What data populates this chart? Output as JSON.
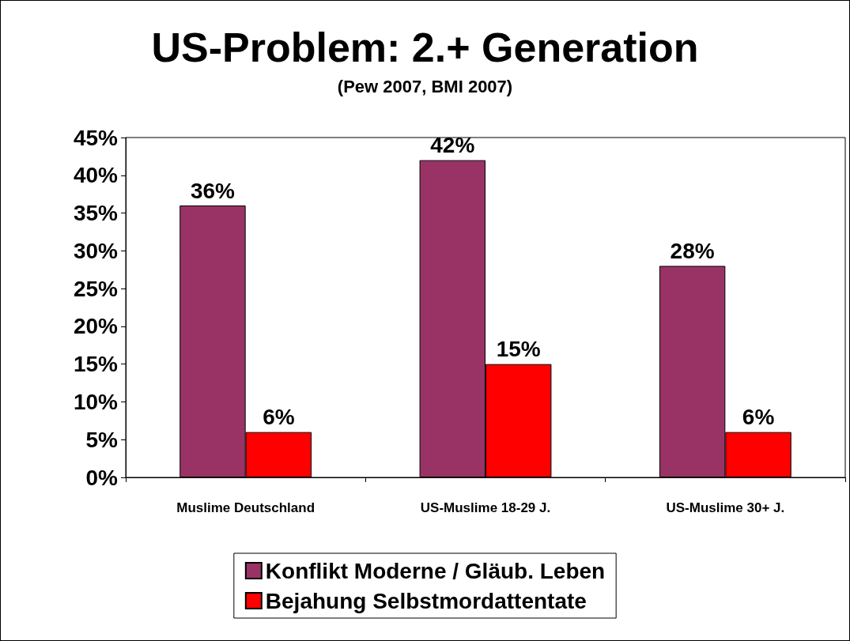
{
  "chart_data": {
    "type": "bar",
    "title": "US-Problem: 2.+ Generation",
    "subtitle": "(Pew 2007, BMI 2007)",
    "categories": [
      "Muslime Deutschland",
      "US-Muslime 18-29 J.",
      "US-Muslime 30+ J."
    ],
    "series": [
      {
        "name": "Konflikt Moderne / Gläub. Leben",
        "color": "#993366",
        "values": [
          36,
          42,
          28
        ],
        "value_labels": [
          "36%",
          "42%",
          "28%"
        ]
      },
      {
        "name": "Bejahung Selbstmordattentate",
        "color": "#ff0000",
        "values": [
          6,
          15,
          6
        ],
        "value_labels": [
          "6%",
          "15%",
          "6%"
        ]
      }
    ],
    "ylim": [
      0,
      45
    ],
    "yticks": [
      {
        "value": 0,
        "label": "0%"
      },
      {
        "value": 5,
        "label": "5%"
      },
      {
        "value": 10,
        "label": "10%"
      },
      {
        "value": 15,
        "label": "15%"
      },
      {
        "value": 20,
        "label": "20%"
      },
      {
        "value": 25,
        "label": "25%"
      },
      {
        "value": 30,
        "label": "30%"
      },
      {
        "value": 35,
        "label": "35%"
      },
      {
        "value": 40,
        "label": "40%"
      },
      {
        "value": 45,
        "label": "45%"
      }
    ],
    "grid": false,
    "legend": "bottom"
  }
}
